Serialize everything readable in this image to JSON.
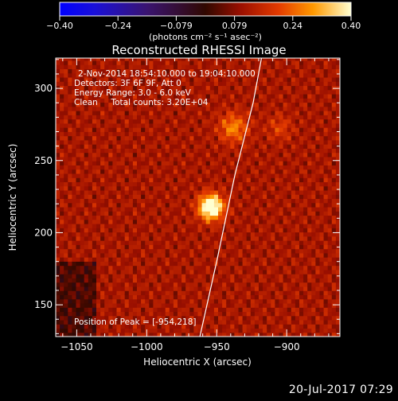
{
  "chart_data": {
    "type": "heatmap",
    "title": "Reconstructed RHESSI Image",
    "xlabel": "Heliocentric X (arcsec)",
    "ylabel": "Heliocentric Y (arcsec)",
    "xlim": [
      -1065,
      -862
    ],
    "ylim": [
      128,
      321
    ],
    "xticks": [
      -1050,
      -1000,
      -950,
      -900
    ],
    "yticks": [
      150,
      200,
      250,
      300
    ],
    "colorbar": {
      "min": -0.4,
      "max": 0.4,
      "ticks": [
        "-0.40",
        "-0.24",
        "-0.079",
        "0.079",
        "0.24",
        "0.40"
      ],
      "unit_label": "(photons cm⁻² s⁻¹ asec⁻²)"
    },
    "info_lines": [
      "2-Nov-2014 18:54:10.000 to 19:04:10.000",
      "Detectors: 3F 6F 9F, Att 0",
      "Energy Range: 3.0 - 6.0 keV",
      "Clean     Total counts: 3.20E+04"
    ],
    "peak_label": "Position of Peak = [-954,218]",
    "peak": {
      "x": -954,
      "y": 218,
      "value": 0.4
    },
    "sources": [
      {
        "x": -954,
        "y": 218,
        "amp": 0.4,
        "sigma": 6
      },
      {
        "x": -938,
        "y": 273,
        "amp": 0.16,
        "sigma": 7
      },
      {
        "x": -905,
        "y": 273,
        "amp": 0.08,
        "sigma": 6
      }
    ],
    "limb_curve": [
      [
        -962,
        128
      ],
      [
        -950,
        180
      ],
      [
        -937,
        240
      ],
      [
        -924,
        290
      ],
      [
        -918,
        321
      ]
    ]
  },
  "footer": {
    "date": "20-Jul-2017 07:29"
  }
}
